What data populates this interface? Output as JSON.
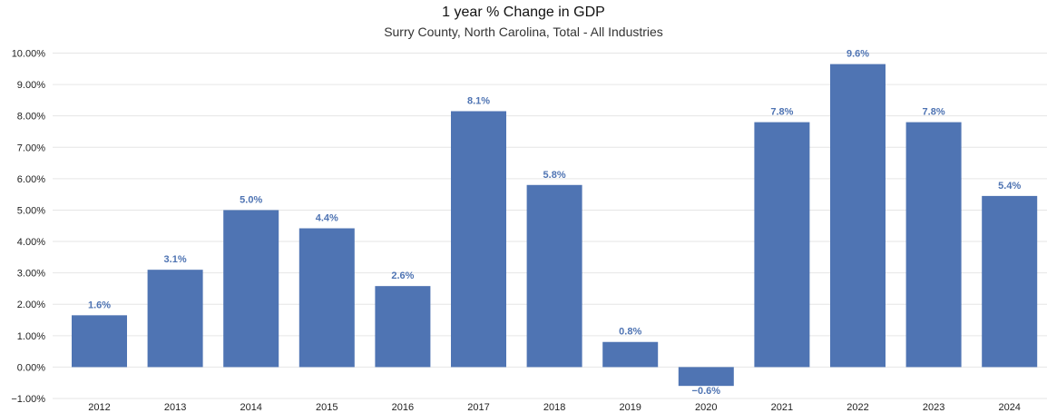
{
  "chart_data": {
    "type": "bar",
    "title": "1 year % Change in GDP",
    "subtitle": "Surry County, North Carolina, Total - All Industries",
    "xlabel": "",
    "ylabel": "",
    "categories": [
      "2012",
      "2013",
      "2014",
      "2015",
      "2016",
      "2017",
      "2018",
      "2019",
      "2020",
      "2021",
      "2022",
      "2023",
      "2024"
    ],
    "values": [
      1.65,
      3.1,
      5.0,
      4.42,
      2.58,
      8.15,
      5.8,
      0.8,
      -0.6,
      7.8,
      9.65,
      7.8,
      5.45
    ],
    "data_labels": [
      "1.6%",
      "3.1%",
      "5.0%",
      "4.4%",
      "2.6%",
      "8.1%",
      "5.8%",
      "0.8%",
      "−0.6%",
      "7.8%",
      "9.6%",
      "7.8%",
      "5.4%"
    ],
    "ylim": [
      -1,
      10
    ],
    "yticks": [
      10,
      9,
      8,
      7,
      6,
      5,
      4,
      3,
      2,
      1,
      0,
      -1
    ],
    "ytick_labels": [
      "10.00%",
      "9.00%",
      "8.00%",
      "7.00%",
      "6.00%",
      "5.00%",
      "4.00%",
      "3.00%",
      "2.00%",
      "1.00%",
      "0.00%",
      "−1.00%"
    ],
    "grid": true,
    "legend": "none",
    "bar_color": "#4f74b3",
    "label_color": "#4f74b3",
    "grid_color": "#e6e6e6"
  }
}
